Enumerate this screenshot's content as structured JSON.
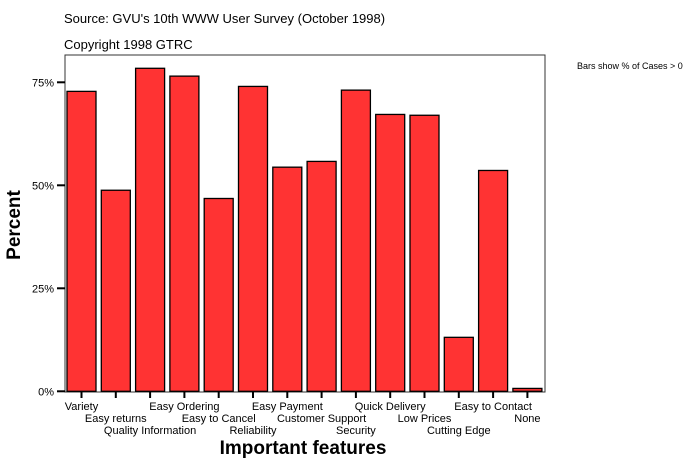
{
  "chart_data": {
    "type": "bar",
    "source": "Source: GVU's 10th WWW User Survey (October 1998)",
    "copyright": "Copyright 1998 GTRC",
    "note": "Bars show % of Cases > 0",
    "xlabel": "Important features",
    "ylabel": "Percent",
    "ylim": [
      0,
      82
    ],
    "yticks": [
      0,
      25,
      50,
      75
    ],
    "ytick_labels": [
      "0%",
      "25%",
      "50%",
      "75%"
    ],
    "grid": false,
    "bar_color": "#ff3333",
    "categories": [
      "Variety",
      "Easy returns",
      "Quality Information",
      "Easy Ordering",
      "Easy to Cancel",
      "Reliability",
      "Easy Payment",
      "Customer Support",
      "Security",
      "Quick Delivery",
      "Low Prices",
      "Cutting Edge",
      "Easy to Contact",
      "None"
    ],
    "values": [
      72.8,
      48.8,
      78.4,
      76.5,
      46.8,
      74.0,
      54.4,
      55.8,
      73.1,
      67.2,
      67.0,
      13.1,
      53.6,
      0.7
    ]
  }
}
